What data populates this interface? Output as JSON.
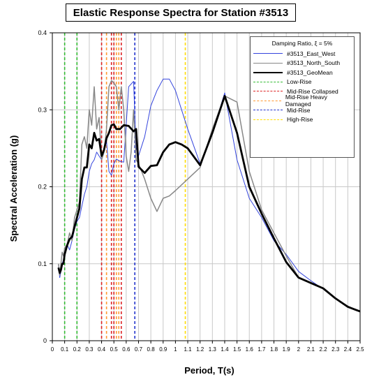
{
  "chart_data": {
    "type": "line",
    "title": "Elastic Response Spectra for Station #3513",
    "xlabel": "Period, T(s)",
    "ylabel": "Spectral Acceleration (g)",
    "xlim": [
      0,
      2.5
    ],
    "ylim": [
      0,
      0.4
    ],
    "x_ticks": [
      "0",
      "0.1",
      "0.2",
      "0.3",
      "0.4",
      "0.5",
      "0.6",
      "0.7",
      "0.8",
      "0.9",
      "1",
      "1.1",
      "1.2",
      "1.3",
      "1.4",
      "1.5",
      "1.6",
      "1.7",
      "1.8",
      "1.9",
      "2",
      "2.1",
      "2.2",
      "2.3",
      "2.4",
      "2.5"
    ],
    "y_ticks": [
      "0",
      "0.1",
      "0.2",
      "0.3",
      "0.4"
    ],
    "grid": true,
    "legend_title": "Damping Ratio, ξ = 5%",
    "legend_position": "top-right",
    "series": [
      {
        "name": "#3513_East_West",
        "color": "#3344dd",
        "width": 1,
        "dash": "",
        "x": [
          0.05,
          0.06,
          0.07,
          0.08,
          0.09,
          0.1,
          0.12,
          0.14,
          0.16,
          0.18,
          0.2,
          0.22,
          0.24,
          0.26,
          0.28,
          0.3,
          0.32,
          0.34,
          0.36,
          0.38,
          0.4,
          0.42,
          0.44,
          0.46,
          0.48,
          0.5,
          0.52,
          0.55,
          0.58,
          0.62,
          0.66,
          0.68,
          0.7,
          0.75,
          0.8,
          0.85,
          0.9,
          0.95,
          1.0,
          1.05,
          1.1,
          1.2,
          1.3,
          1.4,
          1.5,
          1.6,
          1.7,
          1.8,
          1.9,
          2.0,
          2.1,
          2.2,
          2.3,
          2.4,
          2.5
        ],
        "values": [
          0.098,
          0.082,
          0.09,
          0.1,
          0.105,
          0.11,
          0.125,
          0.118,
          0.13,
          0.145,
          0.155,
          0.16,
          0.175,
          0.19,
          0.2,
          0.22,
          0.23,
          0.235,
          0.245,
          0.24,
          0.235,
          0.245,
          0.26,
          0.22,
          0.215,
          0.23,
          0.236,
          0.233,
          0.232,
          0.33,
          0.337,
          0.25,
          0.24,
          0.265,
          0.305,
          0.325,
          0.34,
          0.34,
          0.325,
          0.3,
          0.275,
          0.23,
          0.27,
          0.322,
          0.235,
          0.185,
          0.16,
          0.13,
          0.112,
          0.09,
          0.078,
          0.067,
          0.055,
          0.045,
          0.038
        ]
      },
      {
        "name": "#3513_North_South",
        "color": "#888888",
        "width": 1.5,
        "dash": "",
        "x": [
          0.05,
          0.06,
          0.07,
          0.08,
          0.09,
          0.1,
          0.12,
          0.14,
          0.16,
          0.18,
          0.2,
          0.22,
          0.24,
          0.26,
          0.28,
          0.3,
          0.32,
          0.34,
          0.36,
          0.38,
          0.4,
          0.42,
          0.44,
          0.46,
          0.48,
          0.5,
          0.52,
          0.54,
          0.56,
          0.58,
          0.6,
          0.62,
          0.64,
          0.66,
          0.68,
          0.7,
          0.75,
          0.8,
          0.85,
          0.9,
          0.95,
          1.0,
          1.1,
          1.2,
          1.3,
          1.4,
          1.5,
          1.6,
          1.7,
          1.8,
          1.9,
          2.0,
          2.1,
          2.2,
          2.3,
          2.4,
          2.5
        ],
        "values": [
          0.1,
          0.085,
          0.1,
          0.115,
          0.11,
          0.12,
          0.125,
          0.14,
          0.13,
          0.16,
          0.17,
          0.18,
          0.255,
          0.265,
          0.25,
          0.3,
          0.28,
          0.33,
          0.275,
          0.29,
          0.235,
          0.245,
          0.275,
          0.33,
          0.338,
          0.335,
          0.33,
          0.3,
          0.33,
          0.3,
          0.24,
          0.22,
          0.245,
          0.3,
          0.235,
          0.23,
          0.21,
          0.185,
          0.168,
          0.185,
          0.188,
          0.195,
          0.21,
          0.225,
          0.275,
          0.318,
          0.31,
          0.22,
          0.17,
          0.14,
          0.11,
          0.082,
          0.075,
          0.068,
          0.055,
          0.045,
          0.038
        ]
      },
      {
        "name": "#3513_GeoMean",
        "color": "#000000",
        "width": 2.8,
        "dash": "",
        "x": [
          0.05,
          0.06,
          0.07,
          0.08,
          0.09,
          0.1,
          0.12,
          0.14,
          0.16,
          0.18,
          0.2,
          0.22,
          0.24,
          0.26,
          0.28,
          0.3,
          0.32,
          0.34,
          0.36,
          0.38,
          0.4,
          0.42,
          0.44,
          0.46,
          0.48,
          0.5,
          0.52,
          0.55,
          0.58,
          0.62,
          0.66,
          0.68,
          0.7,
          0.75,
          0.8,
          0.85,
          0.9,
          0.95,
          1.0,
          1.05,
          1.1,
          1.2,
          1.3,
          1.4,
          1.5,
          1.6,
          1.7,
          1.8,
          1.9,
          2.0,
          2.1,
          2.2,
          2.3,
          2.4,
          2.5
        ],
        "values": [
          0.095,
          0.088,
          0.092,
          0.1,
          0.1,
          0.112,
          0.124,
          0.132,
          0.135,
          0.148,
          0.16,
          0.172,
          0.21,
          0.225,
          0.225,
          0.255,
          0.25,
          0.27,
          0.26,
          0.262,
          0.24,
          0.248,
          0.263,
          0.27,
          0.28,
          0.281,
          0.275,
          0.275,
          0.28,
          0.279,
          0.272,
          0.275,
          0.226,
          0.218,
          0.227,
          0.228,
          0.245,
          0.255,
          0.258,
          0.255,
          0.25,
          0.228,
          0.27,
          0.318,
          0.27,
          0.2,
          0.165,
          0.133,
          0.102,
          0.082,
          0.075,
          0.068,
          0.055,
          0.044,
          0.038
        ]
      }
    ],
    "reference_lines": [
      {
        "name": "Low-Rise",
        "color": "#33bb33",
        "x": [
          0.1,
          0.2
        ]
      },
      {
        "name": "Mid-Rise Collapsed",
        "color": "#dd2222",
        "x": [
          0.4,
          0.48,
          0.5,
          0.56
        ]
      },
      {
        "name": "Mid-Rise Heavy Damaged",
        "color": "#ff9933",
        "x": [
          0.44,
          0.52,
          0.54
        ]
      },
      {
        "name": "Mid-Rise",
        "color": "#2233cc",
        "x": [
          0.67
        ]
      },
      {
        "name": "High-Rise",
        "color": "#ffdd00",
        "x": [
          1.08
        ]
      }
    ]
  }
}
